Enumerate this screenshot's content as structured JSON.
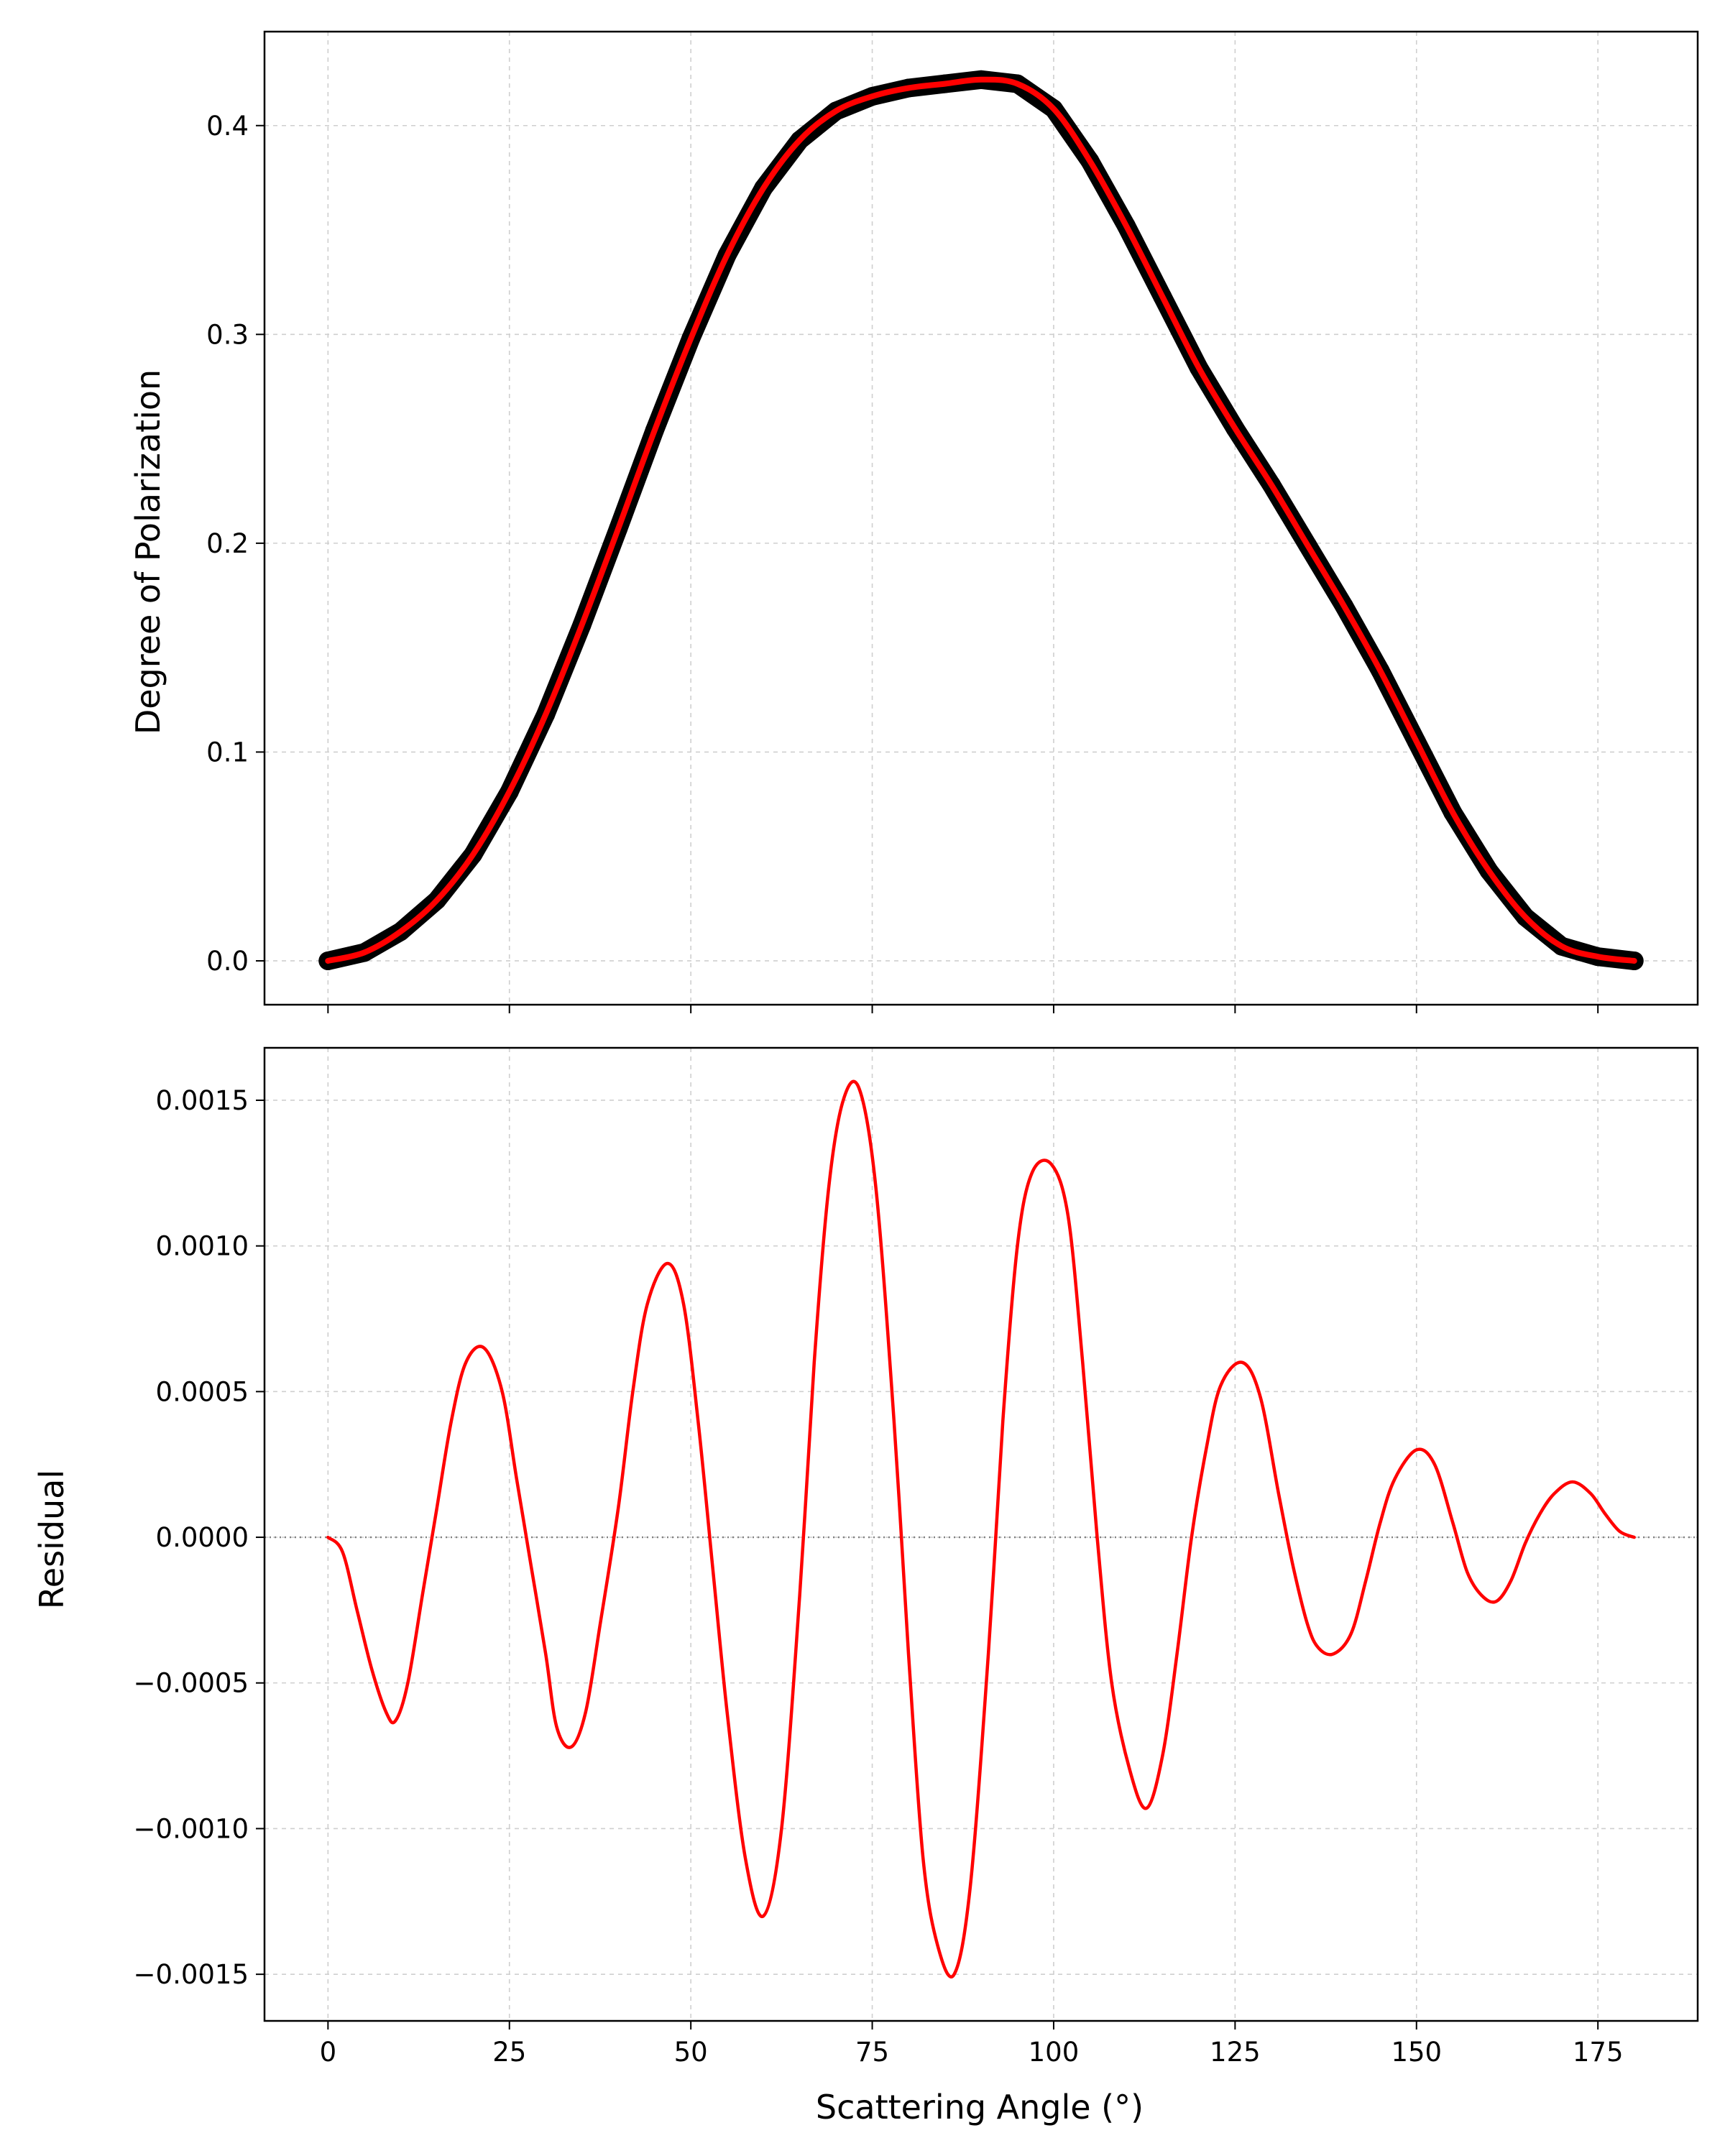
{
  "chart_data": [
    {
      "type": "scatter",
      "title": "",
      "xlabel": "",
      "ylabel": "Degree of Polarization",
      "xlim": [
        -8.75,
        188.75
      ],
      "ylim": [
        -0.021,
        0.445
      ],
      "xticks": [
        0,
        25,
        50,
        75,
        100,
        125,
        150,
        175
      ],
      "yticks": [
        0.0,
        0.1,
        0.2,
        0.3,
        0.4
      ],
      "ytick_labels": [
        "0.0",
        "0.1",
        "0.2",
        "0.3",
        "0.4"
      ],
      "grid": true,
      "legend": "none",
      "series": [
        {
          "kind": "scatter",
          "color": "#000000",
          "x": [
            0,
            5,
            10,
            15,
            20,
            25,
            30,
            35,
            40,
            45,
            50,
            55,
            60,
            65,
            70,
            75,
            80,
            85,
            90,
            95,
            100,
            105,
            110,
            115,
            120,
            125,
            130,
            135,
            140,
            145,
            150,
            155,
            160,
            165,
            170,
            175,
            180
          ],
          "y": [
            0.0,
            0.004,
            0.014,
            0.029,
            0.051,
            0.081,
            0.118,
            0.161,
            0.207,
            0.254,
            0.298,
            0.338,
            0.37,
            0.393,
            0.407,
            0.414,
            0.418,
            0.42,
            0.422,
            0.42,
            0.408,
            0.383,
            0.352,
            0.318,
            0.284,
            0.255,
            0.228,
            0.199,
            0.17,
            0.139,
            0.105,
            0.071,
            0.043,
            0.021,
            0.007,
            0.002,
            0.0
          ]
        },
        {
          "kind": "line",
          "color": "#ff0000",
          "x": [
            0,
            5,
            10,
            15,
            20,
            25,
            30,
            35,
            40,
            45,
            50,
            55,
            60,
            65,
            70,
            75,
            80,
            85,
            90,
            95,
            100,
            105,
            110,
            115,
            120,
            125,
            130,
            135,
            140,
            145,
            150,
            155,
            160,
            165,
            170,
            175,
            180
          ],
          "y": [
            0.0,
            0.004,
            0.014,
            0.029,
            0.051,
            0.081,
            0.118,
            0.161,
            0.207,
            0.254,
            0.298,
            0.338,
            0.37,
            0.393,
            0.407,
            0.414,
            0.418,
            0.42,
            0.422,
            0.42,
            0.408,
            0.383,
            0.352,
            0.318,
            0.284,
            0.255,
            0.228,
            0.199,
            0.17,
            0.139,
            0.105,
            0.071,
            0.043,
            0.021,
            0.007,
            0.002,
            0.0
          ]
        }
      ]
    },
    {
      "type": "line",
      "title": "",
      "xlabel": "Scattering Angle (°)",
      "ylabel": "Residual",
      "xlim": [
        -8.75,
        188.75
      ],
      "ylim": [
        -0.00166,
        0.00168
      ],
      "xticks": [
        0,
        25,
        50,
        75,
        100,
        125,
        150,
        175
      ],
      "xtick_labels": [
        "0",
        "25",
        "50",
        "75",
        "100",
        "125",
        "150",
        "175"
      ],
      "yticks": [
        -0.0015,
        -0.001,
        -0.0005,
        0.0,
        0.0005,
        0.001,
        0.0015
      ],
      "ytick_labels": [
        "−0.0015",
        "−0.0010",
        "−0.0005",
        "0.0000",
        "0.0005",
        "0.0010",
        "0.0015"
      ],
      "grid": true,
      "legend": "none",
      "reference_line": {
        "y": 0.0,
        "color": "#808080",
        "style": "dotted"
      },
      "series": [
        {
          "kind": "line",
          "color": "#ff0000",
          "x": [
            0,
            2,
            4,
            6,
            8,
            9.3,
            11,
            13,
            15,
            17,
            19,
            21.5,
            24,
            26,
            28,
            30,
            31.5,
            33.5,
            35.5,
            37.5,
            40,
            42,
            44,
            46.8,
            49,
            51,
            53,
            55,
            57.5,
            60,
            62.5,
            65,
            67,
            69,
            71,
            73.2,
            75.5,
            78,
            80,
            82,
            84,
            86.3,
            88.5,
            91,
            93,
            95,
            97,
            99.7,
            102,
            104,
            106,
            108,
            110.5,
            112.8,
            115,
            117,
            119,
            121,
            123,
            126,
            128.5,
            131,
            133,
            135,
            136.5,
            138.6,
            141,
            143,
            145,
            147,
            150,
            152.5,
            155,
            157,
            159,
            161,
            163,
            165,
            167,
            169,
            171.5,
            174,
            176,
            178,
            180
          ],
          "y": [
            0.0,
            -5e-05,
            -0.00025,
            -0.00045,
            -0.0006,
            -0.00063,
            -0.0005,
            -0.0002,
            0.0001,
            0.0004,
            0.0006,
            0.00065,
            0.0005,
            0.0002,
            -0.0001,
            -0.0004,
            -0.00065,
            -0.00072,
            -0.0006,
            -0.0003,
            0.0001,
            0.0005,
            0.0008,
            0.00094,
            0.0008,
            0.0004,
            -0.0001,
            -0.0006,
            -0.0011,
            -0.0013,
            -0.001,
            -0.0002,
            0.0006,
            0.0012,
            0.0015,
            0.00154,
            0.0012,
            0.0004,
            -0.0004,
            -0.0011,
            -0.0014,
            -0.0015,
            -0.0012,
            -0.0004,
            0.0004,
            0.001,
            0.00125,
            0.00128,
            0.0011,
            0.0006,
            0.0,
            -0.0005,
            -0.0008,
            -0.00093,
            -0.00075,
            -0.0004,
            0.0,
            0.0003,
            0.00052,
            0.0006,
            0.00048,
            0.00015,
            -0.0001,
            -0.0003,
            -0.00038,
            -0.0004,
            -0.00033,
            -0.00015,
            5e-05,
            0.0002,
            0.0003,
            0.00025,
            5e-05,
            -0.00012,
            -0.0002,
            -0.00022,
            -0.00015,
            -2e-05,
            8e-05,
            0.00015,
            0.00019,
            0.00015,
            8e-05,
            2e-05,
            0.0
          ]
        }
      ]
    }
  ]
}
